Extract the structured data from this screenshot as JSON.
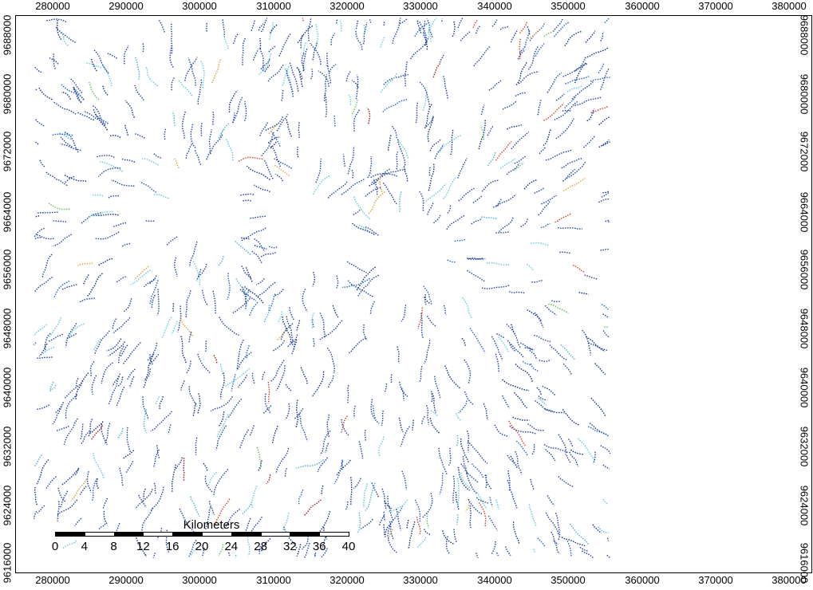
{
  "x_axis": {
    "labels": [
      "280000",
      "290000",
      "300000",
      "310000",
      "320000",
      "330000",
      "340000",
      "350000",
      "360000",
      "370000",
      "380000"
    ]
  },
  "y_axis": {
    "labels": [
      "9688000",
      "9680000",
      "9672000",
      "9664000",
      "9656000",
      "9648000",
      "9640000",
      "9632000",
      "9624000",
      "9616000"
    ]
  },
  "scale_bar": {
    "title": "Kilometers",
    "ticks": [
      "0",
      "4",
      "8",
      "12",
      "16",
      "20",
      "24",
      "28",
      "32",
      "36",
      "40"
    ]
  },
  "stream_colors": [
    "#1f3fa8",
    "#0a2a8a",
    "#2060d0",
    "#5fc9e0",
    "#48b0d8",
    "#e0a030",
    "#d04020",
    "#a01818",
    "#60c060"
  ],
  "map_extent": {
    "easting": [
      275000,
      383000
    ],
    "northing": [
      9613000,
      9689000
    ],
    "data_east_limit": 355500
  }
}
